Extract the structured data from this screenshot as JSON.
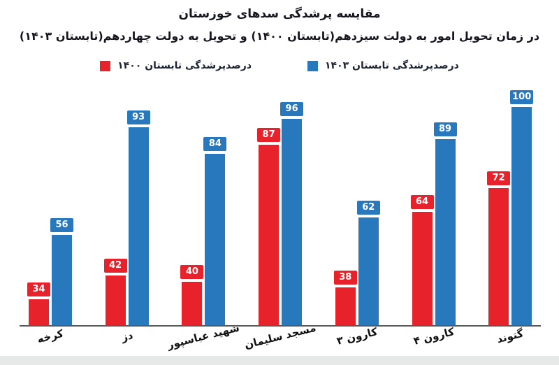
{
  "title": {
    "line1": "مقایسه پرشدگی سدهای خوزستان",
    "line2": "در زمان تحویل امور به دولت سیزدهم(تابستان ۱۴۰۰) و تحویل به دولت چهاردهم(تابستان ۱۴۰۳)"
  },
  "legend": [
    {
      "label": "درصدپرشدگی تابستان ۱۴۰۰",
      "color": "#e8222a"
    },
    {
      "label": "درصدپرشدگی تابستان ۱۴۰۳",
      "color": "#2878be"
    }
  ],
  "chart_data": {
    "type": "bar",
    "categories": [
      "کرخه",
      "دز",
      "شهید عباسپور",
      "مسجد سلیمان",
      "کارون ۳",
      "کارون ۴",
      "گتوند"
    ],
    "series": [
      {
        "name": "درصدپرشدگی تابستان ۱۴۰۰",
        "color": "#e8222a",
        "values": [
          34,
          42,
          40,
          87,
          38,
          64,
          72
        ]
      },
      {
        "name": "درصدپرشدگی تابستان ۱۴۰۳",
        "color": "#2878be",
        "values": [
          56,
          93,
          84,
          96,
          62,
          89,
          100
        ]
      }
    ],
    "ylim": [
      25,
      100
    ],
    "grid": false,
    "legend_position": "top",
    "data_labels": true
  }
}
